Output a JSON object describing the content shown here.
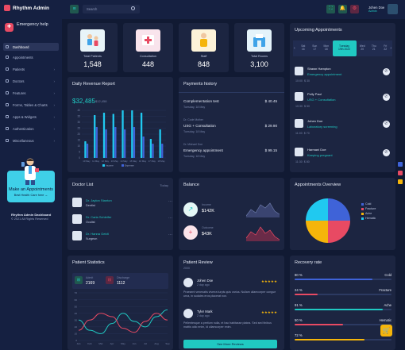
{
  "brand": {
    "name": "Rhythm Admin"
  },
  "sidebar": {
    "emergency": "Emergency help",
    "items": [
      {
        "label": "Dashboard",
        "active": true
      },
      {
        "label": "Appointments"
      },
      {
        "label": "Patients"
      },
      {
        "label": "Doctors"
      },
      {
        "label": "Features"
      },
      {
        "label": "Forms, Tables & Charts"
      },
      {
        "label": "Apps & Widgets"
      },
      {
        "label": "Authentication"
      },
      {
        "label": "Miscellaneous"
      }
    ],
    "make_appointment": "Make an Appointments",
    "best_care": "Best Health Care here →",
    "footer_title": "Rhythm Admin Dashboard",
    "footer_copy": "© 2021 All Rights Reserved"
  },
  "topbar": {
    "search_placeholder": "Search",
    "user_name": "Johen Doe",
    "user_role": "Admin"
  },
  "stats": [
    {
      "label": "Total Patients",
      "value": "1,548",
      "color": "#e8f4f8"
    },
    {
      "label": "Consultation",
      "value": "448",
      "color": "#f9e4ec"
    },
    {
      "label": "Staff",
      "value": "848",
      "color": "#fdf3d8"
    },
    {
      "label": "Total Rooms",
      "value": "3,100",
      "color": "#e4f3fa"
    }
  ],
  "revenue": {
    "title": "Daily Revenue Report",
    "amount": "$32,485",
    "secondary": "$12,458"
  },
  "payments": {
    "title": "Payments history",
    "rows": [
      {
        "name": "Complementation test",
        "amount": "$ 40.45",
        "date": "Tuesday, 18 May",
        "prefix": ""
      },
      {
        "name": "USG + Consultation",
        "amount": "$ 29.90",
        "date": "Tuesday, 18 May",
        "prefix": "Dr. Code Mother"
      },
      {
        "name": "Emergency appointment",
        "amount": "$ 99.15",
        "date": "Tuesday, 18 May",
        "prefix": "Dr. Michael Doe"
      }
    ]
  },
  "upcoming": {
    "title": "Upcoming Appointments",
    "days": [
      {
        "d": "Sat",
        "n": "16"
      },
      {
        "d": "Sun",
        "n": "17"
      },
      {
        "d": "Mon",
        "n": "18"
      },
      {
        "d": "Tuesday",
        "n": "19th 2022"
      },
      {
        "d": "Wed",
        "n": "20"
      },
      {
        "d": "Thu",
        "n": "21"
      },
      {
        "d": "Fri",
        "n": "22"
      }
    ],
    "rows": [
      {
        "name": "Shawn Hampton",
        "type": "Emergency appointment",
        "time": "10:00",
        "price": "$ 30"
      },
      {
        "name": "Polly Paul",
        "type": "USG + Consultation",
        "time": "10:30",
        "price": "$ 50"
      },
      {
        "name": "Johen Doe",
        "type": "Laboratory screening",
        "time": "11:00",
        "price": "$ 70"
      },
      {
        "name": "Harmani Doe",
        "type": "Keeping pregnant",
        "time": "11:30",
        "price": "$ 80"
      }
    ]
  },
  "doctors": {
    "title": "Doctor List",
    "filter": "Today",
    "rows": [
      {
        "name": "Dr. Jaylon Stanton",
        "spec": "Dentist"
      },
      {
        "name": "Dr. Carla Schleifer",
        "spec": "Oculist"
      },
      {
        "name": "Dr. Hanna Geidt",
        "spec": "Surgeon"
      }
    ]
  },
  "balance": {
    "title": "Balance",
    "income_label": "Income",
    "income_value": "$142K",
    "outcome_label": "Outcome",
    "outcome_value": "$43K"
  },
  "appointments_overview": {
    "title": "Appointments Overview",
    "legend": [
      {
        "label": "Cold",
        "color": "#3f63d8"
      },
      {
        "label": "Fracture",
        "color": "#e84a63"
      },
      {
        "label": "Ache",
        "color": "#f5b50a"
      },
      {
        "label": "Hematic",
        "color": "#20c9f0"
      }
    ]
  },
  "patient_stats": {
    "title": "Patient Statistics",
    "admit_label": "Admit",
    "admit_value": "2169",
    "discharge_label": "Discharge",
    "discharge_value": "1112"
  },
  "reviews": {
    "title": "Patient Review",
    "subtitle": "2000",
    "items": [
      {
        "name": "Johen Doe",
        "date": "2 day ago",
        "stars": "★★★★★",
        "text": "Praesent venenatis viverra turpis quis varius. Nullam ullamcorper congue urna, in sodales eros placerat non."
      },
      {
        "name": "Tyler Mark",
        "date": "2 day ago",
        "stars": "★★★★★",
        "text": "Pellentesque a pretium nulla, et hac habitasse platea. Sed sed finibus mattis odio enim, id ullamcorper enim."
      }
    ],
    "see_more": "See More Reviews"
  },
  "recovery": {
    "title": "Recovery rate",
    "rows": [
      {
        "pct": "80 %",
        "label": "Cold",
        "fill": 0.8,
        "color": "#3f63d8"
      },
      {
        "pct": "24 %",
        "label": "Fracture",
        "fill": 0.24,
        "color": "#e84a63"
      },
      {
        "pct": "91 %",
        "label": "Ache",
        "fill": 0.91,
        "color": "#20c9c2"
      },
      {
        "pct": "50 %",
        "label": "Hematic",
        "fill": 0.5,
        "color": "#e84a63"
      },
      {
        "pct": "72 %",
        "label": "",
        "fill": 0.72,
        "color": "#f5b50a"
      }
    ]
  },
  "chart_data": [
    {
      "type": "bar",
      "categories": [
        "10 May",
        "11 May",
        "12 May",
        "13 May",
        "14 May",
        "15 May",
        "16 May",
        "17 May",
        "18 May"
      ],
      "series": [
        {
          "name": "Income",
          "values": [
            14,
            36,
            38,
            37,
            40,
            40,
            38,
            16,
            24
          ]
        },
        {
          "name": "Expense",
          "values": [
            12,
            26,
            24,
            26,
            24,
            26,
            18,
            12,
            12
          ]
        }
      ],
      "ylim": [
        0,
        40
      ],
      "yticks": [
        "0",
        "5",
        "10",
        "15",
        "20",
        "25",
        "30",
        "35",
        "40"
      ]
    },
    {
      "type": "pie",
      "labels": [
        "Cold",
        "Fracture",
        "Ache",
        "Hematic"
      ],
      "values": [
        25,
        25,
        25,
        25
      ]
    },
    {
      "type": "line",
      "x": [
        "Jan",
        "Feb",
        "Mar",
        "Apr",
        "May",
        "Jun",
        "Jul",
        "Aug",
        "Sep"
      ],
      "series": [
        {
          "name": "Admit",
          "values": [
            30,
            15,
            10,
            25,
            40,
            28,
            20,
            35,
            45
          ]
        },
        {
          "name": "Discharge",
          "values": [
            15,
            30,
            40,
            35,
            18,
            12,
            28,
            40,
            30
          ]
        }
      ],
      "ylim": [
        0,
        70
      ],
      "yticks": [
        "0",
        "10",
        "20",
        "30",
        "40",
        "50",
        "60",
        "70"
      ]
    }
  ]
}
